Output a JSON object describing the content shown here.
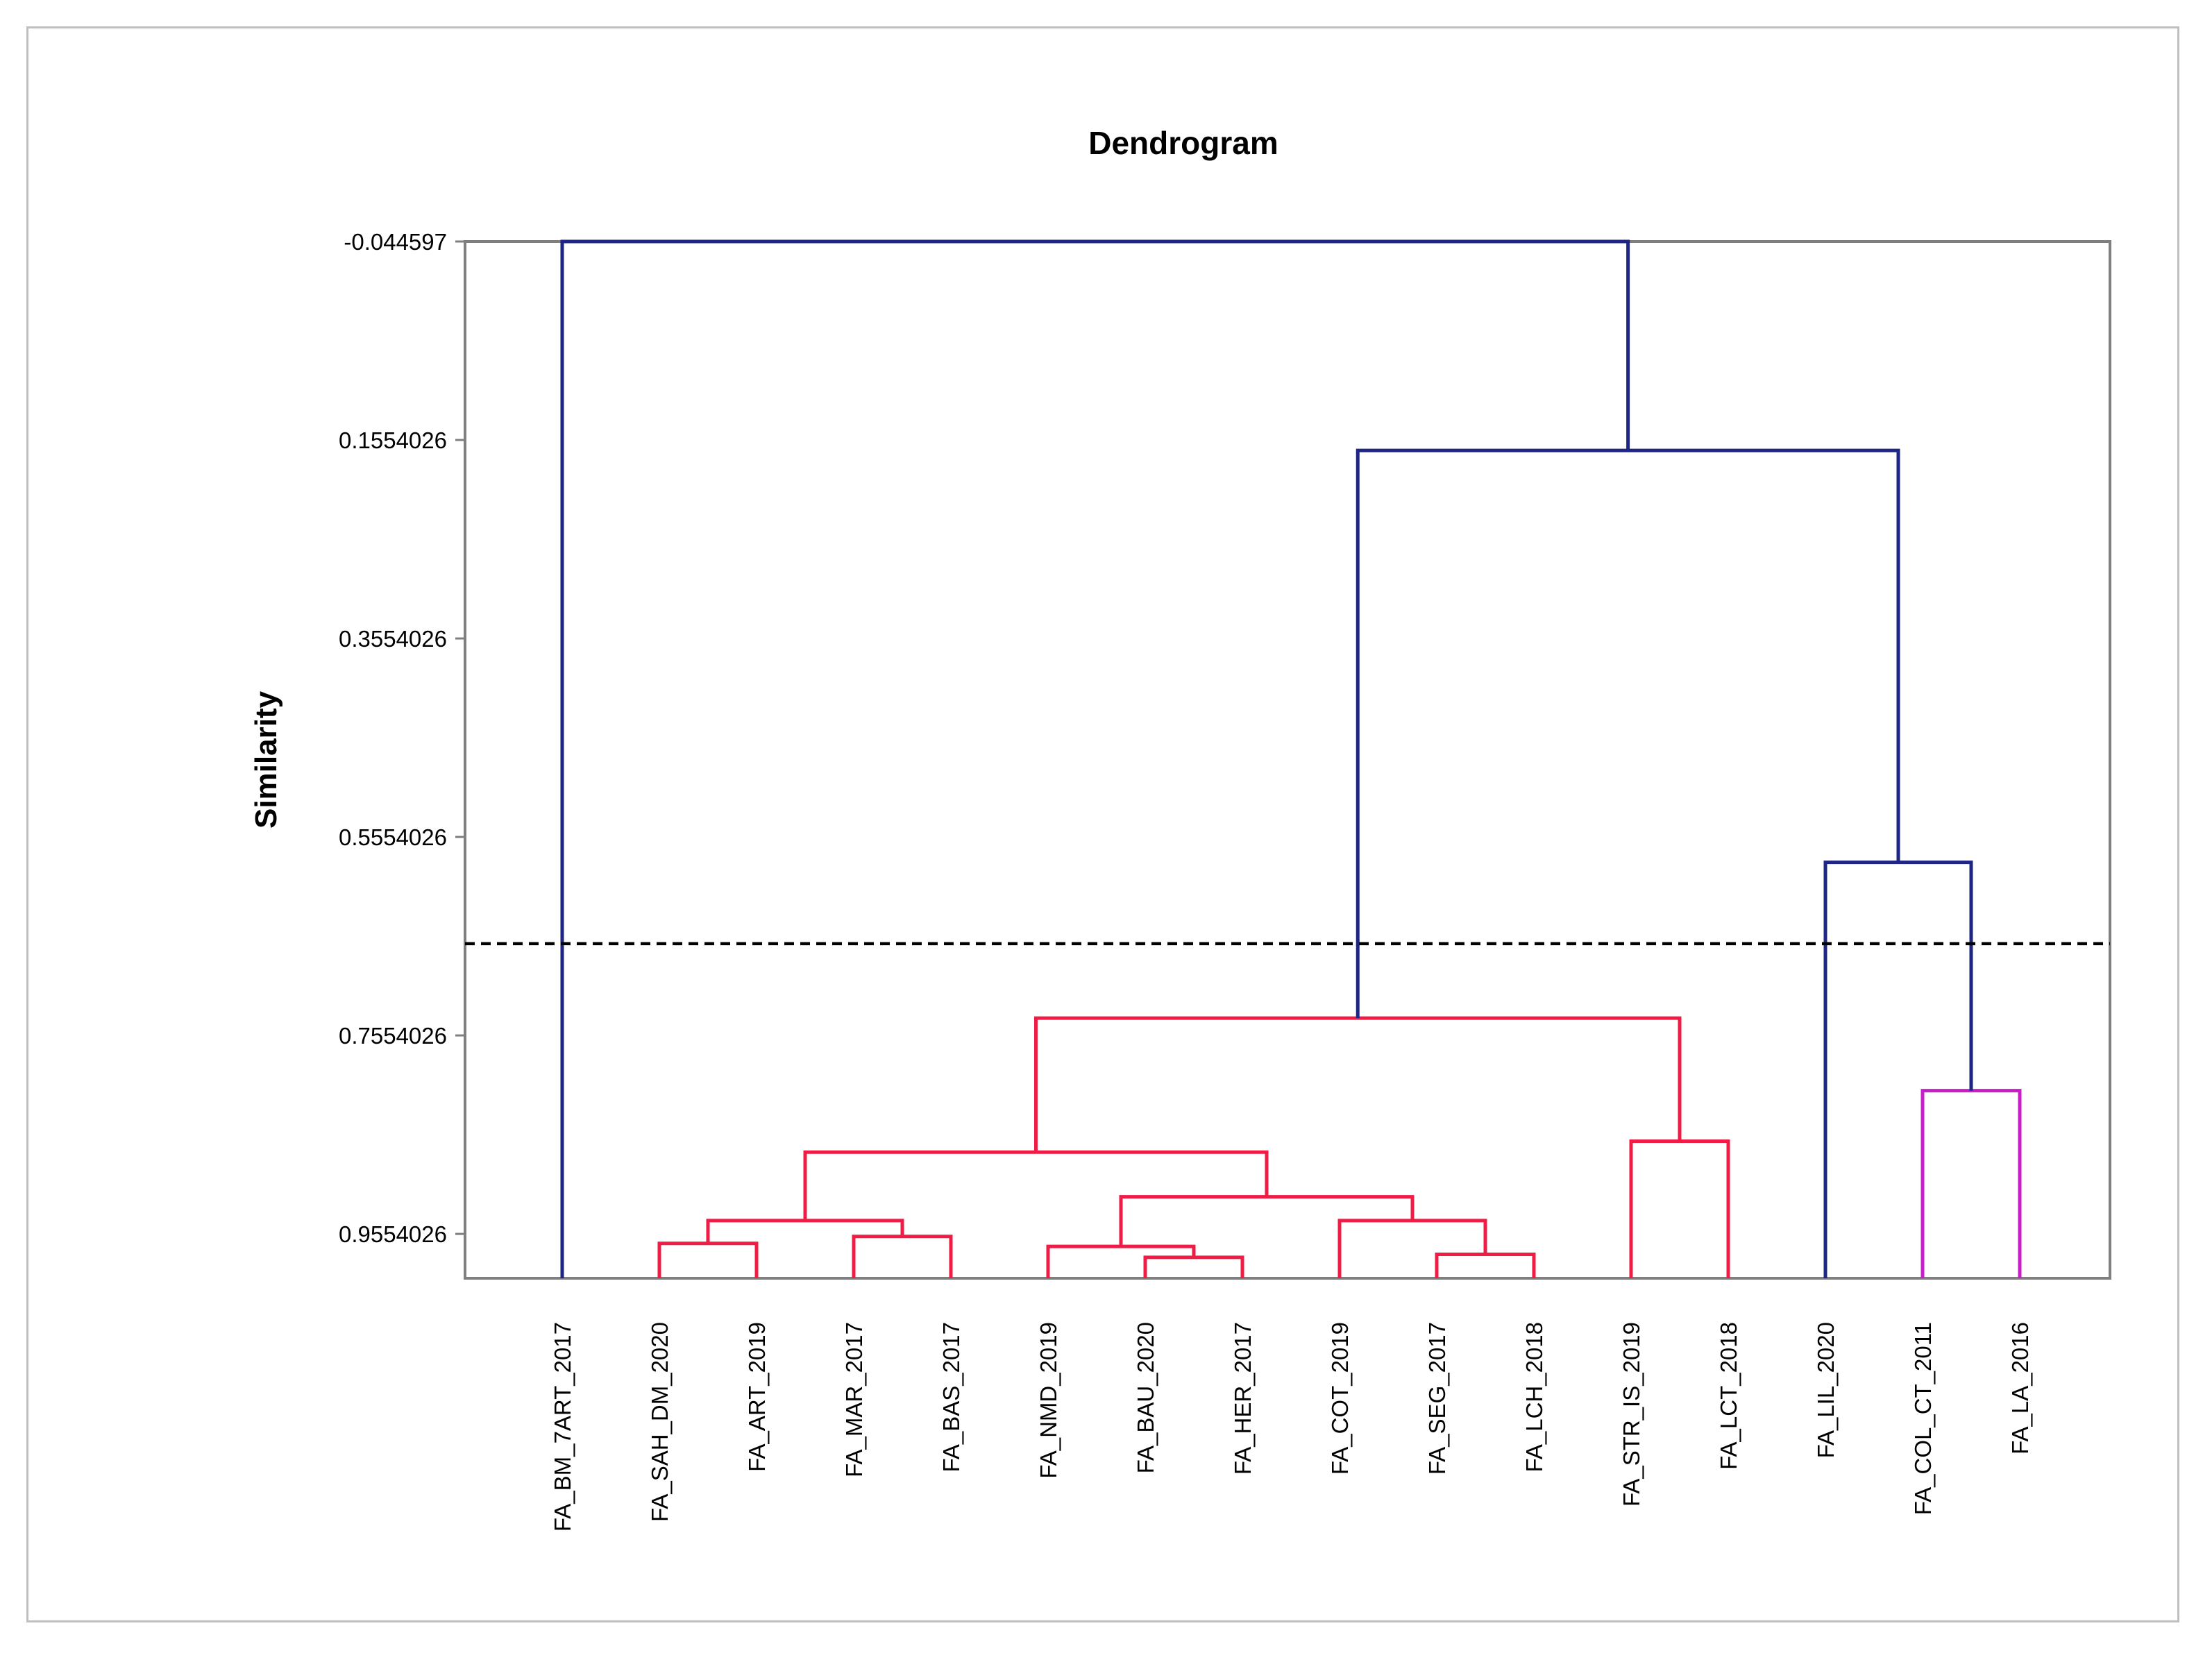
{
  "chart_data": {
    "type": "dendrogram",
    "title": "Dendrogram",
    "ylabel": "Similarity",
    "xlabel": "",
    "ylim": [
      -0.044597,
      1.0001
    ],
    "y_inverted": true,
    "y_ticks": [
      "-0.044597",
      "0.1554026",
      "0.3554026",
      "0.5554026",
      "0.7554026",
      "0.9554026"
    ],
    "y_tick_values": [
      -0.044597,
      0.1554026,
      0.3554026,
      0.5554026,
      0.7554026,
      0.9554026
    ],
    "cut_line": 0.663,
    "leaves": [
      "FA_BM_7ART_2017",
      "FA_SAH_DM_2020",
      "FA_ART_2019",
      "FA_MAR_2017",
      "FA_BAS_2017",
      "FA_NMD_2019",
      "FA_BAU_2020",
      "FA_HER_2017",
      "FA_COT_2019",
      "FA_SEG_2017",
      "FA_LCH_2018",
      "FA_STR_IS_2019",
      "FA_LCT_2018",
      "FA_LIL_2020",
      "FA_COL_CT_2011",
      "FA_LA_2016"
    ],
    "merges": [
      {
        "left": "leaf:1",
        "right": "leaf:2",
        "similarity": 0.965,
        "color": "#ef1c46"
      },
      {
        "left": "leaf:3",
        "right": "leaf:4",
        "similarity": 0.958,
        "color": "#ef1c46"
      },
      {
        "left": "m0",
        "right": "m1",
        "similarity": 0.942,
        "color": "#ef1c46"
      },
      {
        "left": "leaf:6",
        "right": "leaf:7",
        "similarity": 0.979,
        "color": "#ef1c46"
      },
      {
        "left": "leaf:5",
        "right": "m3",
        "similarity": 0.968,
        "color": "#ef1c46"
      },
      {
        "left": "leaf:9",
        "right": "leaf:10",
        "similarity": 0.976,
        "color": "#ef1c46"
      },
      {
        "left": "leaf:8",
        "right": "m5",
        "similarity": 0.942,
        "color": "#ef1c46"
      },
      {
        "left": "m4",
        "right": "m6",
        "similarity": 0.918,
        "color": "#ef1c46"
      },
      {
        "left": "m2",
        "right": "m7",
        "similarity": 0.873,
        "color": "#ef1c46"
      },
      {
        "left": "leaf:11",
        "right": "leaf:12",
        "similarity": 0.862,
        "color": "#ef1c46"
      },
      {
        "left": "m8",
        "right": "m9",
        "similarity": 0.738,
        "color": "#ef1c46"
      },
      {
        "left": "leaf:14",
        "right": "leaf:15",
        "similarity": 0.811,
        "color": "#c81ec8"
      },
      {
        "left": "leaf:13",
        "right": "m11",
        "similarity": 0.581,
        "color": "#1e2585"
      },
      {
        "left": "m10",
        "right": "m12",
        "similarity": 0.166,
        "color": "#1e2585"
      },
      {
        "left": "leaf:0",
        "right": "m13",
        "similarity": -0.044597,
        "color": "#1e2585"
      }
    ],
    "colors": {
      "red_cluster": "#ef1c46",
      "magenta_cluster": "#c81ec8",
      "root": "#1e2585",
      "cut_line": "#000000",
      "axis": "#7f7f7f"
    }
  }
}
